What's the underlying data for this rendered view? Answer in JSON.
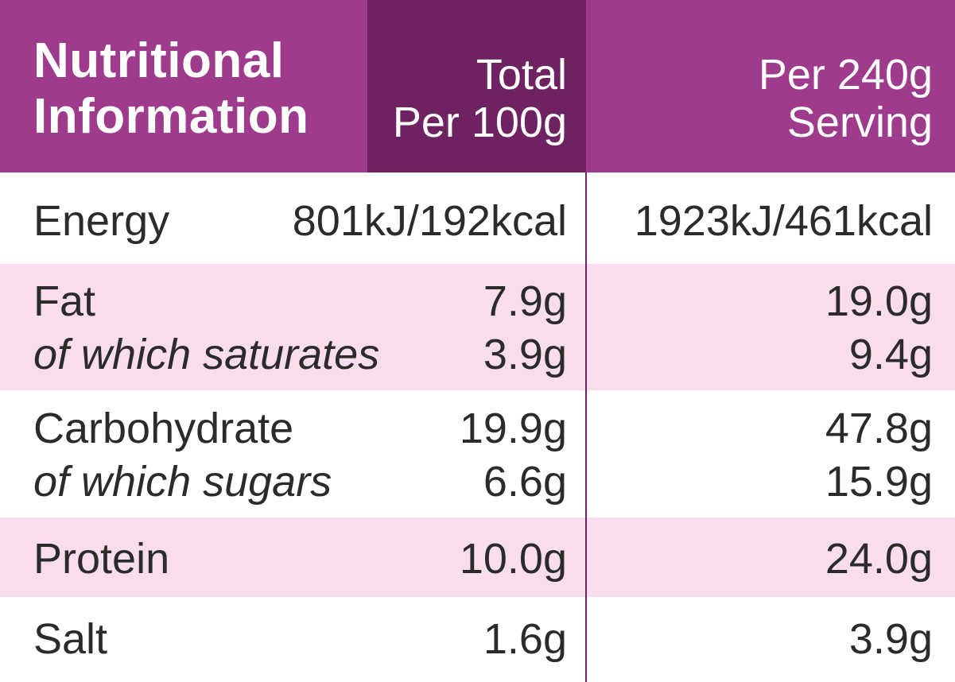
{
  "header": {
    "title_line1": "Nutritional",
    "title_line2": "Information",
    "col1_line1": "Total",
    "col1_line2": "Per 100g",
    "col2_line1": "Per 240g",
    "col2_line2": "Serving"
  },
  "rows": {
    "energy": {
      "label": "Energy",
      "per100": "801kJ/192kcal",
      "serving": "1923kJ/461kcal"
    },
    "fat": {
      "label": "Fat",
      "per100": "7.9g",
      "serving": "19.0g"
    },
    "saturates": {
      "label": "of which saturates",
      "per100": "3.9g",
      "serving": "9.4g"
    },
    "carbohydrate": {
      "label": "Carbohydrate",
      "per100": "19.9g",
      "serving": "47.8g"
    },
    "sugars": {
      "label": "of which sugars",
      "per100": "6.6g",
      "serving": "15.9g"
    },
    "protein": {
      "label": "Protein",
      "per100": "10.0g",
      "serving": "24.0g"
    },
    "salt": {
      "label": "Salt",
      "per100": "1.6g",
      "serving": "3.9g"
    }
  },
  "colors": {
    "header": "#9e3b8c",
    "header_dark": "#6e2262",
    "row_shade": "#f9dded",
    "text": "#2b2b2b"
  }
}
